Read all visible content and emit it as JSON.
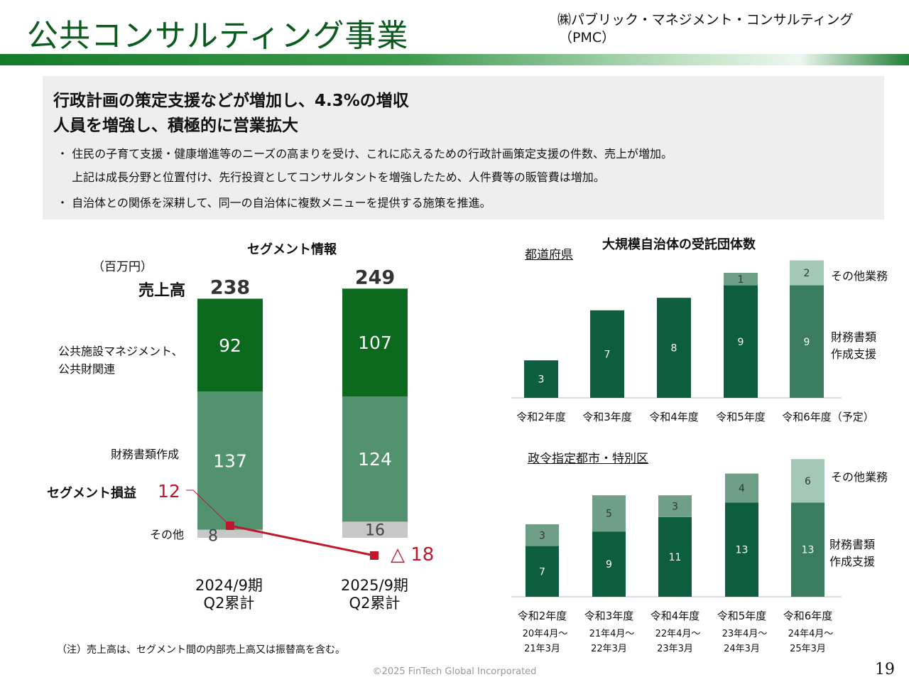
{
  "header": {
    "title": "公共コンサルティング事業",
    "company_line1": "㈱パブリック・マネジメント・コンサルティング",
    "company_line2": "（PMC）"
  },
  "summary": {
    "headline1": "行政計画の策定支援などが増加し、4.3%の増収",
    "headline2": "人員を増強し、積極的に営業拡大",
    "bullets": [
      "・ 住民の子育て支援・健康増進等のニーズの高まりを受け、これに応えるための行政計画策定支援の件数、売上が増加。",
      "上記は成長分野と位置付け、先行投資としてコンサルタントを増強したため、人件費等の販管費は増加。",
      "・ 自治体との関係を深耕して、同一の自治体に複数メニューを提供する施策を推進。"
    ]
  },
  "segment": {
    "title": "セグメント情報",
    "unit": "（百万円）",
    "sales_label": "売上高",
    "row_labels": [
      "公共施設マネジメント、",
      "公共財関連",
      "財務書類作成",
      "その他"
    ],
    "profit_label": "セグメント損益",
    "note": "（注）売上高は、セグメント間の内部売上高又は振替高を含む。",
    "periods": [
      {
        "line1": "2024/9期",
        "line2": "Q2累計",
        "total": "238",
        "profit_text": "12"
      },
      {
        "line1": "2025/9期",
        "line2": "Q2累計",
        "total": "249",
        "profit_text": "△ 18"
      }
    ]
  },
  "large_gov": {
    "title": "大規模自治体の受託団体数",
    "sub1": "都道府県",
    "sub2": "政令指定都市・特別区",
    "legend_other": "その他業務",
    "legend_main1": "財務書類",
    "legend_main2": "作成支援",
    "pref_labels": [
      "令和2年度",
      "令和3年度",
      "令和4年度",
      "令和5年度",
      "令和6年度（予定）"
    ],
    "city_labels": [
      "令和2年度",
      "令和3年度",
      "令和4年度",
      "令和5年度",
      "令和6年度"
    ],
    "city_periods": [
      [
        "20年4月～",
        "21年3月"
      ],
      [
        "21年4月～",
        "22年3月"
      ],
      [
        "22年4月～",
        "23年3月"
      ],
      [
        "23年4月～",
        "24年3月"
      ],
      [
        "24年4月～",
        "25年3月"
      ]
    ]
  },
  "footer": {
    "copyright": "©2025 FinTech Global Incorporated",
    "page": "19"
  },
  "colors": {
    "dark_green": "#0b6a1e",
    "mid_green": "#52926f",
    "gray": "#c7c7c7",
    "red": "#c0172c",
    "count_dark": "#0d5e3e",
    "count_mid": "#3a7d5e",
    "count_other5": "#6f9f86",
    "count_other6": "#a3c8b6"
  },
  "chart_data": [
    {
      "type": "bar",
      "stacked": true,
      "title": "セグメント情報",
      "categories": [
        "2024/9期 Q2累計",
        "2025/9期 Q2累計"
      ],
      "series": [
        {
          "name": "その他",
          "values": [
            8,
            16
          ]
        },
        {
          "name": "財務書類作成",
          "values": [
            137,
            124
          ]
        },
        {
          "name": "公共施設マネジメント、公共財関連",
          "values": [
            92,
            107
          ]
        }
      ],
      "totals": [
        238,
        249
      ],
      "line_series": {
        "name": "セグメント損益",
        "values": [
          12,
          -18
        ]
      },
      "ylabel": "（百万円）"
    },
    {
      "type": "bar",
      "stacked": true,
      "title": "都道府県",
      "categories": [
        "令和2年度",
        "令和3年度",
        "令和4年度",
        "令和5年度",
        "令和6年度（予定）"
      ],
      "series": [
        {
          "name": "財務書類作成支援",
          "values": [
            3,
            7,
            8,
            9,
            9
          ]
        },
        {
          "name": "その他業務",
          "values": [
            0,
            0,
            0,
            1,
            2
          ]
        }
      ]
    },
    {
      "type": "bar",
      "stacked": true,
      "title": "政令指定都市・特別区",
      "categories": [
        "令和2年度",
        "令和3年度",
        "令和4年度",
        "令和5年度",
        "令和6年度"
      ],
      "series": [
        {
          "name": "財務書類作成支援",
          "values": [
            7,
            9,
            11,
            13,
            13
          ]
        },
        {
          "name": "その他業務",
          "values": [
            3,
            5,
            3,
            4,
            6
          ]
        }
      ]
    }
  ]
}
